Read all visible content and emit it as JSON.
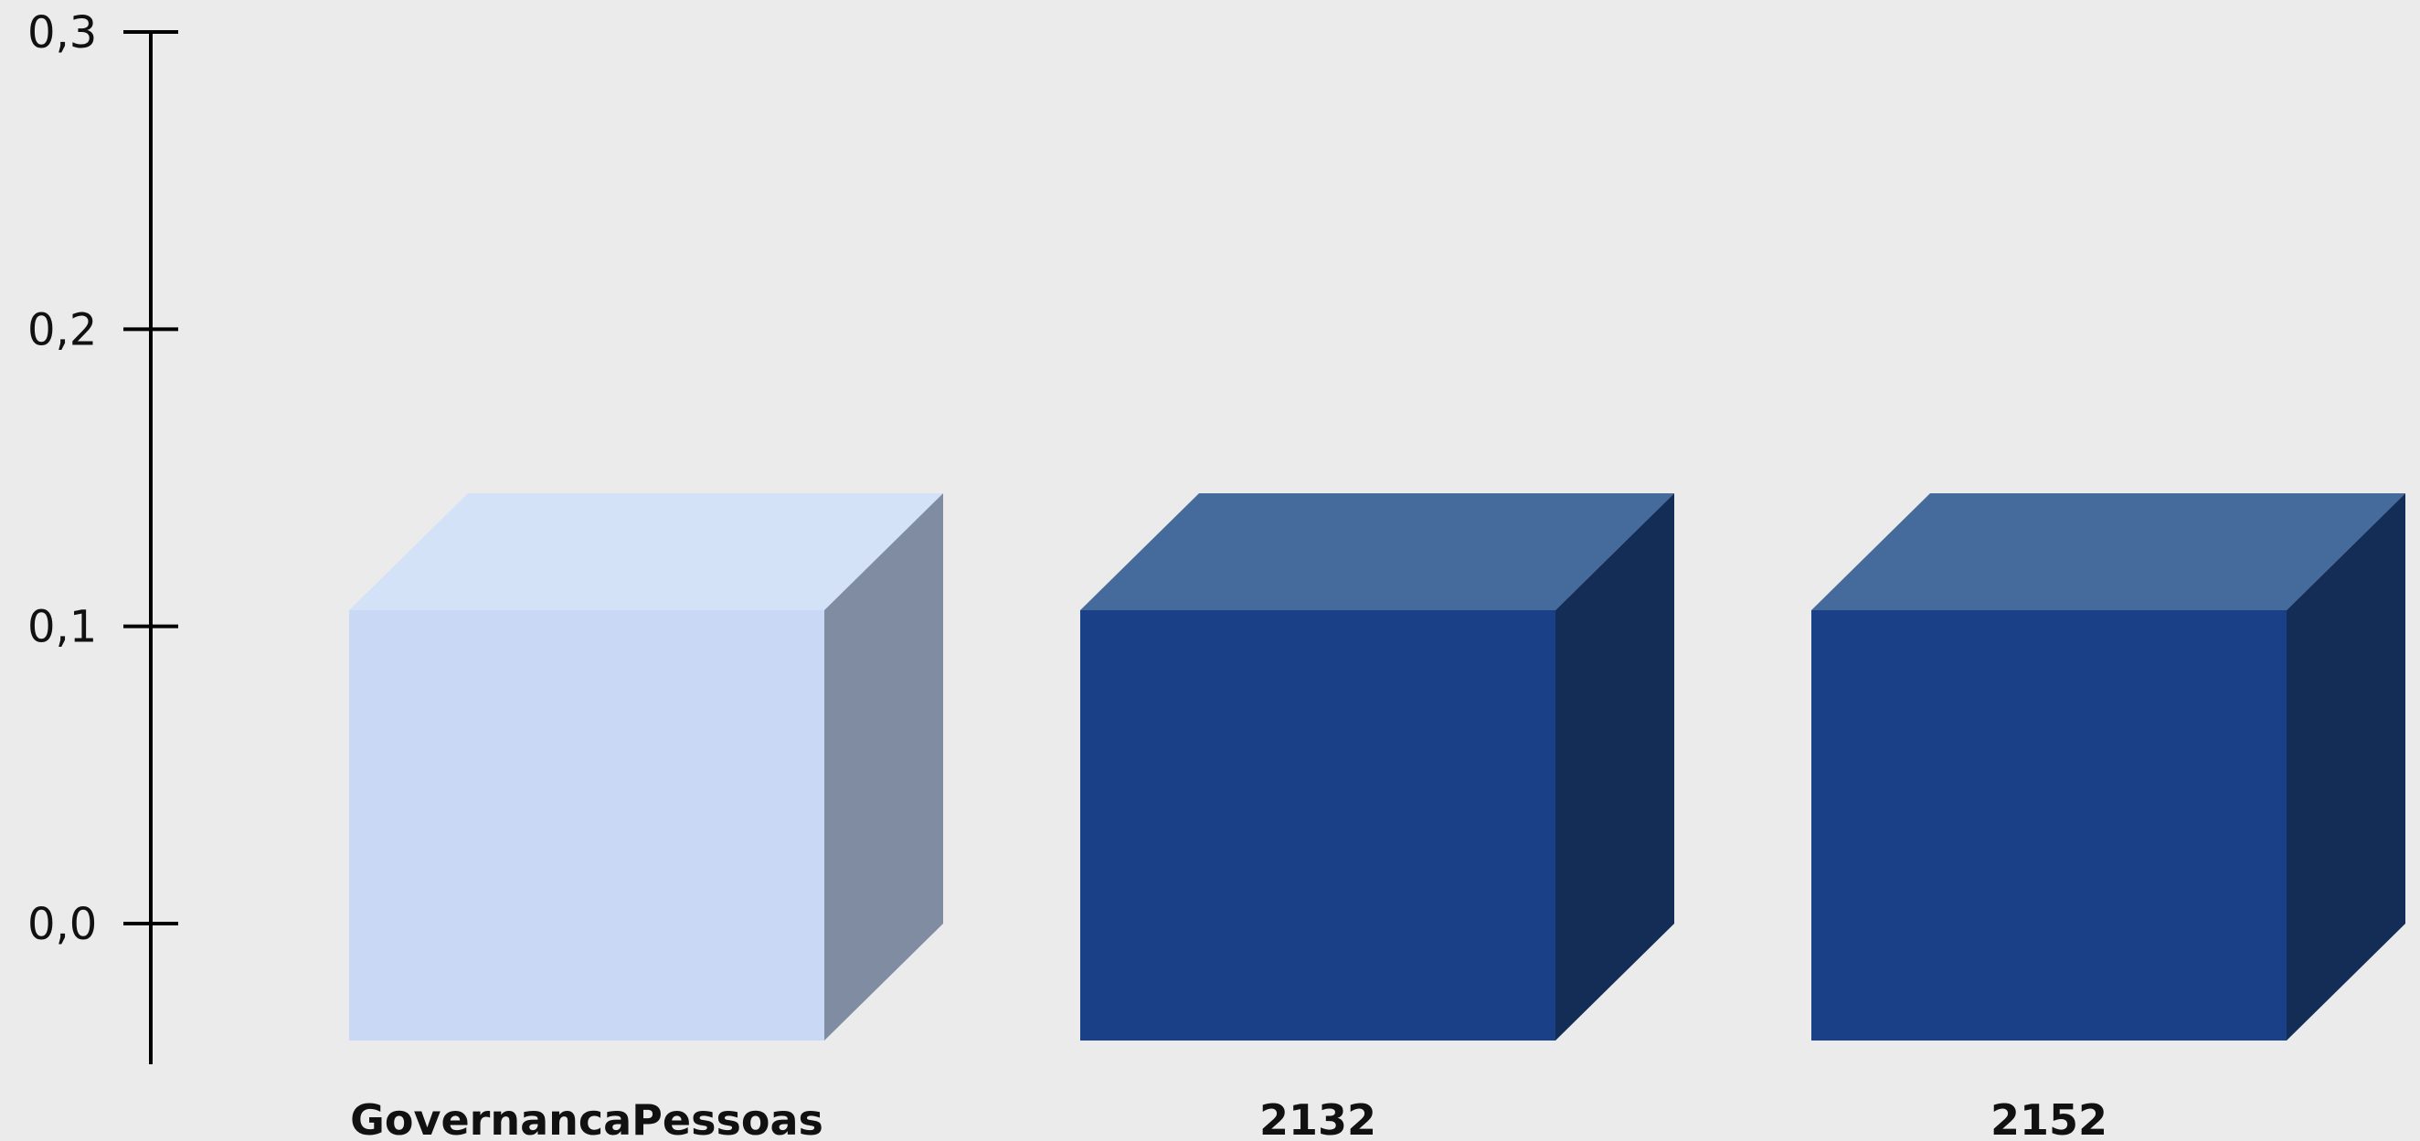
{
  "chart_data": {
    "type": "bar",
    "style": "3d-box",
    "title": "",
    "xlabel": "",
    "ylabel": "",
    "categories": [
      "GovernancaPessoas",
      "2132",
      "2152"
    ],
    "values": [
      0.15,
      0.15,
      0.15
    ],
    "ylim": [
      0.0,
      0.3
    ],
    "yticks": [
      0.0,
      0.1,
      0.2,
      0.3
    ],
    "ytick_labels": [
      "0,0",
      "0,1",
      "0,2",
      "0,3"
    ],
    "grid": false,
    "legend": "none",
    "bar_colors": [
      {
        "front": "#c8d8f5",
        "top": "#d3e2f7",
        "side": "#808ca2"
      },
      {
        "front": "#1a4088",
        "top": "#456a9c",
        "side": "#132d56"
      },
      {
        "front": "#1a4088",
        "top": "#456a9c",
        "side": "#132d56"
      }
    ]
  }
}
